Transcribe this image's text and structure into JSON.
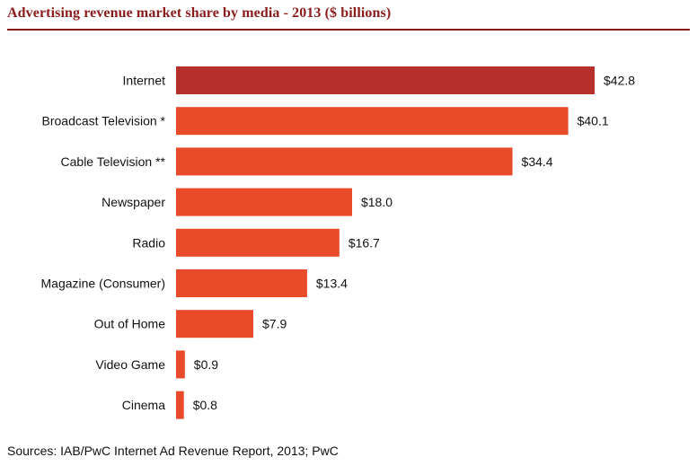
{
  "colors": {
    "title": "#8a1c1c",
    "rule": "#8a1c1c",
    "highlight_bar": "#b72f2b",
    "bar": "#e84a2a"
  },
  "header": {
    "title": "Advertising revenue market share by media - 2013 ($ billions)"
  },
  "chart_data": {
    "type": "bar",
    "orientation": "horizontal",
    "title": "Advertising revenue market share by media - 2013 ($ billions)",
    "xlabel": "",
    "ylabel": "",
    "xlim": [
      0,
      42.8
    ],
    "grid": false,
    "legend": "none",
    "categories": [
      "Internet",
      "Broadcast Television *",
      "Cable Television **",
      "Newspaper",
      "Radio",
      "Magazine (Consumer)",
      "Out of Home",
      "Video Game",
      "Cinema"
    ],
    "values": [
      42.8,
      40.1,
      34.4,
      18.0,
      16.7,
      13.4,
      7.9,
      0.9,
      0.8
    ],
    "value_labels": [
      "$42.8",
      "$40.1",
      "$34.4",
      "$18.0",
      "$16.7",
      "$13.4",
      "$7.9",
      "$0.9",
      "$0.8"
    ],
    "highlighted_category": "Internet"
  },
  "footer": {
    "source": "Sources: IAB/PwC Internet Ad Revenue Report, 2013; PwC"
  }
}
